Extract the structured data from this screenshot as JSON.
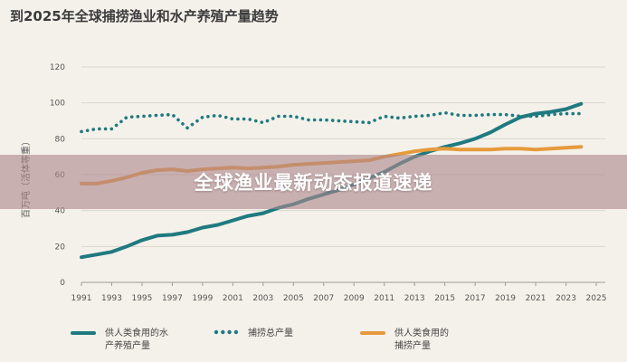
{
  "chart_data": {
    "type": "line",
    "title": "到2025年全球捕捞渔业和水产养殖产量趋势",
    "ylabel": "百万吨（活体等重）",
    "xlabel": "",
    "ylim": [
      0,
      120
    ],
    "xlim": [
      1991,
      2025
    ],
    "yticks": [
      0,
      20,
      40,
      60,
      80,
      100,
      120
    ],
    "xticks": [
      1991,
      1993,
      1995,
      1997,
      1999,
      2001,
      2003,
      2005,
      2007,
      2009,
      2011,
      2013,
      2015,
      2017,
      2019,
      2021,
      2023,
      2025
    ],
    "grid": true,
    "legend_position": "bottom",
    "series": [
      {
        "name": "供人类食用的水产养殖产量",
        "style": "solid",
        "color": "#1f7a80",
        "x": [
          1991,
          1992,
          1993,
          1994,
          1995,
          1996,
          1997,
          1998,
          1999,
          2000,
          2001,
          2002,
          2003,
          2004,
          2005,
          2006,
          2007,
          2008,
          2009,
          2010,
          2011,
          2012,
          2013,
          2014,
          2015,
          2016,
          2017,
          2018,
          2019,
          2020,
          2021,
          2022,
          2023,
          2024
        ],
        "y": [
          14,
          15.5,
          17,
          20,
          23.5,
          26,
          26.5,
          28,
          30.5,
          32,
          34.5,
          37,
          38.5,
          41.5,
          43.5,
          46.5,
          49,
          51.5,
          54.5,
          58,
          61.5,
          66,
          70,
          73,
          75.5,
          77.5,
          80,
          83.5,
          88,
          92,
          94,
          95,
          96.5,
          99.5
        ]
      },
      {
        "name": "捕捞总产量",
        "style": "dotted",
        "color": "#1f7a80",
        "x": [
          1991,
          1992,
          1993,
          1994,
          1995,
          1996,
          1997,
          1998,
          1999,
          2000,
          2001,
          2002,
          2003,
          2004,
          2005,
          2006,
          2007,
          2008,
          2009,
          2010,
          2011,
          2012,
          2013,
          2014,
          2015,
          2016,
          2017,
          2018,
          2019,
          2020,
          2021,
          2022,
          2023,
          2024
        ],
        "y": [
          84,
          85.5,
          85.5,
          92,
          92.5,
          93,
          93.5,
          86,
          92,
          93,
          91,
          91,
          89,
          92.5,
          92.5,
          90.5,
          90.5,
          90,
          89.5,
          89,
          92.5,
          91.5,
          92.5,
          93,
          94.5,
          93,
          93,
          93.5,
          93.5,
          92.5,
          92.5,
          93.5,
          94,
          94
        ]
      },
      {
        "name": "供人类食用的捕捞产量",
        "style": "solid",
        "color": "#e69a3c",
        "x": [
          1991,
          1992,
          1993,
          1994,
          1995,
          1996,
          1997,
          1998,
          1999,
          2000,
          2001,
          2002,
          2003,
          2004,
          2005,
          2006,
          2007,
          2008,
          2009,
          2010,
          2011,
          2012,
          2013,
          2014,
          2015,
          2016,
          2017,
          2018,
          2019,
          2020,
          2021,
          2022,
          2023,
          2024
        ],
        "y": [
          55,
          55,
          56.5,
          58.5,
          61,
          62.5,
          63,
          62,
          63,
          63.5,
          64,
          63.5,
          64,
          64.5,
          65.5,
          66,
          66.5,
          67,
          67.5,
          68,
          70,
          71.5,
          73,
          74,
          74.5,
          74,
          74,
          74,
          74.5,
          74.5,
          74,
          74.5,
          75,
          75.5
        ]
      }
    ]
  },
  "overlay": {
    "banner_text": "全球渔业最新动态报道速递"
  },
  "legend": {
    "item1_line1": "供人类食用的水",
    "item1_line2": "产养殖产量",
    "item2": "捕捞总产量",
    "item3_line1": "供人类食用的",
    "item3_line2": "捕捞产量"
  },
  "colors": {
    "teal": "#1f7a80",
    "orange": "#e69a3c",
    "banner": "#af878c"
  }
}
